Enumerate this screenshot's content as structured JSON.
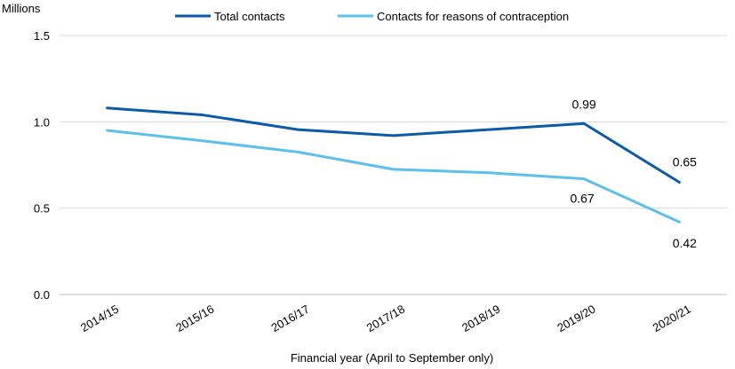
{
  "chart_data": {
    "type": "line",
    "title": "",
    "ylabel": "Millions",
    "xlabel": "Financial year (April to September only)",
    "categories": [
      "2014/15",
      "2015/16",
      "2016/17",
      "2017/18",
      "2018/19",
      "2019/20",
      "2020/21"
    ],
    "ylim": [
      0,
      1.5
    ],
    "yticks": [
      0,
      0.5,
      1.0,
      1.5
    ],
    "ytick_labels": [
      "0.0",
      "0.5",
      "1.0",
      "1.5"
    ],
    "grid": true,
    "legend_position": "top",
    "series": [
      {
        "name": "Total contacts",
        "color": "#0b5ba8",
        "values": [
          1.08,
          1.04,
          0.955,
          0.92,
          0.955,
          0.99,
          0.65
        ],
        "data_labels": [
          null,
          null,
          null,
          null,
          null,
          "0.99",
          "0.65"
        ]
      },
      {
        "name": "Contacts for reasons of contraception",
        "color": "#5bc0eb",
        "values": [
          0.95,
          0.89,
          0.825,
          0.725,
          0.705,
          0.67,
          0.42
        ],
        "data_labels": [
          null,
          null,
          null,
          null,
          null,
          "0.67",
          "0.42"
        ]
      }
    ]
  }
}
